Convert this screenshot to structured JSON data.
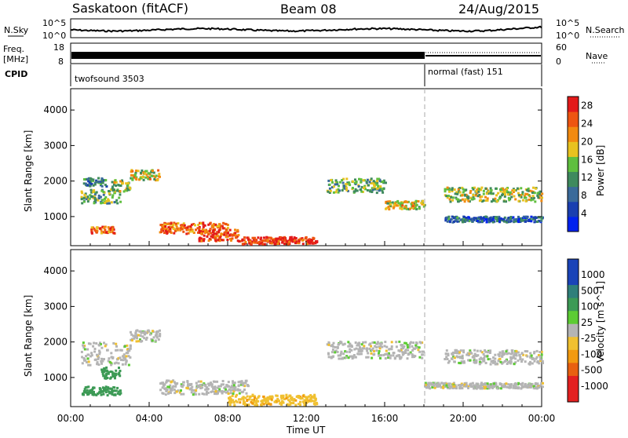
{
  "header": {
    "station": "Saskatoon (fitACF)",
    "beam": "Beam 08",
    "date": "24/Aug/2015"
  },
  "strips": {
    "nsky_label": "N.Sky",
    "nsky_tick_top": "10^5",
    "nsky_tick_bottom": "10^0",
    "nsearch_label": "N.Search",
    "freq_label_1": "Freq.",
    "freq_label_2": "[MHz]",
    "freq_tick_top": "18",
    "freq_tick_bottom": "8",
    "nave_tick_top": "60",
    "nave_tick_bottom": "0",
    "nave_label": "Nave",
    "cpid_label": "CPID",
    "cpid_left": "twofsound 3503",
    "cpid_right": "normal (fast) 151"
  },
  "time_axis": {
    "title": "Time UT",
    "ticks": [
      "00:00",
      "04:00",
      "08:00",
      "12:00",
      "16:00",
      "20:00",
      "00:00"
    ]
  },
  "colors": {
    "power": [
      "#0022ee",
      "#1a3fb0",
      "#3a6a9a",
      "#3f8a5e",
      "#5fbf3f",
      "#e8c21f",
      "#f28a10",
      "#ee5511",
      "#e31a1a"
    ],
    "velocity_pos": [
      "#1a44b8",
      "#2f7f7a",
      "#3c9a55",
      "#5ccc33"
    ],
    "velocity_neg": [
      "#f0c030",
      "#f29a10",
      "#e86010",
      "#e32020"
    ],
    "ground": "#b4b4b4"
  },
  "chart_data": [
    {
      "type": "heatmap",
      "panel": "power",
      "ylabel": "Slant Range [km]",
      "yticks": [
        "1000",
        "2000",
        "3000",
        "4000"
      ],
      "ylim": [
        180,
        4600
      ],
      "xlim_hours": [
        0,
        24
      ],
      "colorbar_label": "Power [dB]",
      "colorbar_ticks": [
        "4",
        "8",
        "12",
        "16",
        "20",
        "24",
        "28"
      ],
      "colorbar_range": [
        0,
        30
      ],
      "cpid_change_hour": 18.0,
      "scatter_regions": [
        {
          "t_start": 0.5,
          "t_end": 2.5,
          "range_km": 1600,
          "width_km": 250,
          "power_db": 14
        },
        {
          "t_start": 0.6,
          "t_end": 1.8,
          "range_km": 2000,
          "width_km": 150,
          "power_db": 10
        },
        {
          "t_start": 1.0,
          "t_end": 2.2,
          "range_km": 650,
          "width_km": 120,
          "power_db": 24
        },
        {
          "t_start": 2.0,
          "t_end": 3.0,
          "range_km": 1900,
          "width_km": 200,
          "power_db": 16
        },
        {
          "t_start": 3.0,
          "t_end": 4.5,
          "range_km": 2200,
          "width_km": 180,
          "power_db": 18
        },
        {
          "t_start": 4.5,
          "t_end": 8.0,
          "range_km": 700,
          "width_km": 200,
          "power_db": 24
        },
        {
          "t_start": 6.5,
          "t_end": 8.5,
          "range_km": 500,
          "width_km": 200,
          "power_db": 26
        },
        {
          "t_start": 8.5,
          "t_end": 12.5,
          "range_km": 350,
          "width_km": 130,
          "power_db": 28
        },
        {
          "t_start": 13.0,
          "t_end": 16.0,
          "range_km": 1900,
          "width_km": 250,
          "power_db": 14
        },
        {
          "t_start": 16.0,
          "t_end": 18.0,
          "range_km": 1350,
          "width_km": 150,
          "power_db": 18
        },
        {
          "t_start": 19.0,
          "t_end": 24.0,
          "range_km": 1650,
          "width_km": 250,
          "power_db": 16
        },
        {
          "t_start": 19.0,
          "t_end": 24.0,
          "range_km": 950,
          "width_km": 100,
          "power_db": 8
        }
      ]
    },
    {
      "type": "heatmap",
      "panel": "velocity",
      "ylabel": "Slant Range [km]",
      "yticks": [
        "1000",
        "2000",
        "3000",
        "4000"
      ],
      "ylim": [
        180,
        4600
      ],
      "xlim_hours": [
        0,
        24
      ],
      "colorbar_label": "Velocity [m s^-1]",
      "colorbar_ticks": [
        "1000",
        "500",
        "100",
        "25",
        "-25",
        "-100",
        "-500",
        "-1000"
      ],
      "cpid_change_hour": 18.0,
      "scatter_regions": [
        {
          "t_start": 0.5,
          "t_end": 3.0,
          "range_km": 1700,
          "width_km": 400,
          "velocity": 0
        },
        {
          "t_start": 0.5,
          "t_end": 2.5,
          "range_km": 650,
          "width_km": 150,
          "velocity": 150
        },
        {
          "t_start": 1.5,
          "t_end": 2.5,
          "range_km": 1150,
          "width_km": 200,
          "velocity": 300
        },
        {
          "t_start": 3.0,
          "t_end": 4.5,
          "range_km": 2200,
          "width_km": 200,
          "velocity": 0
        },
        {
          "t_start": 4.5,
          "t_end": 9.0,
          "range_km": 750,
          "width_km": 250,
          "velocity": 0
        },
        {
          "t_start": 8.0,
          "t_end": 12.5,
          "range_km": 400,
          "width_km": 180,
          "velocity": -80
        },
        {
          "t_start": 13.0,
          "t_end": 18.0,
          "range_km": 1800,
          "width_km": 300,
          "velocity": 0
        },
        {
          "t_start": 19.0,
          "t_end": 24.0,
          "range_km": 1600,
          "width_km": 250,
          "velocity": 0
        },
        {
          "t_start": 18.0,
          "t_end": 24.0,
          "range_km": 800,
          "width_km": 100,
          "velocity": 0
        }
      ]
    }
  ]
}
